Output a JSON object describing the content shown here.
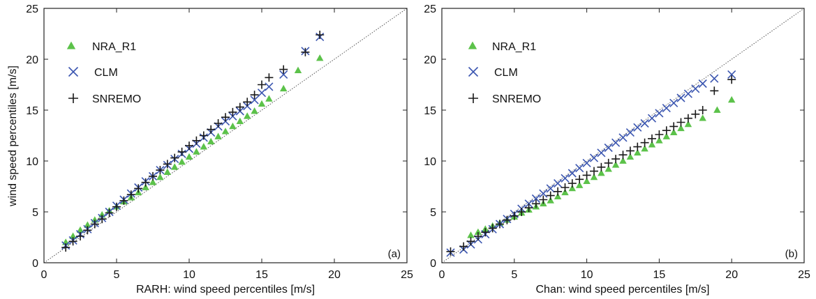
{
  "colors": {
    "NRA_R1": "#5cc24a",
    "CLM": "#3b56b0",
    "SNREMO": "#1a1a1a",
    "reference_line": "#555555"
  },
  "chart_data": [
    {
      "type": "scatter",
      "panel_label": "(a)",
      "xlabel": "RARH: wind speed percentiles [m/s]",
      "ylabel": "wind speed percentiles [m/s]",
      "xlim": [
        0,
        25
      ],
      "ylim": [
        0,
        25
      ],
      "ticks": [
        0,
        5,
        10,
        15,
        20,
        25
      ],
      "grid": false,
      "reference_line": "dotted 1:1 line",
      "legend_position": "upper-left",
      "series": [
        {
          "name": "NRA_R1",
          "marker": "triangle",
          "x": [
            1.5,
            2.0,
            2.5,
            3.0,
            3.5,
            4.0,
            4.5,
            5.0,
            5.5,
            6.0,
            6.5,
            7.0,
            7.5,
            8.0,
            8.5,
            9.0,
            9.5,
            10.0,
            10.5,
            11.0,
            11.5,
            12.0,
            12.5,
            13.0,
            13.5,
            14.0,
            14.5,
            15.0,
            15.5,
            16.5,
            17.5,
            19.0
          ],
          "y": [
            2.0,
            2.6,
            3.2,
            3.7,
            4.2,
            4.7,
            5.1,
            5.5,
            6.0,
            6.4,
            6.9,
            7.4,
            7.9,
            8.4,
            8.9,
            9.4,
            9.9,
            10.4,
            10.9,
            11.4,
            11.9,
            12.4,
            12.9,
            13.4,
            13.9,
            14.4,
            14.9,
            15.6,
            16.1,
            17.1,
            18.9,
            20.1
          ]
        },
        {
          "name": "CLM",
          "marker": "x",
          "x": [
            1.5,
            2.0,
            2.5,
            3.0,
            3.5,
            4.0,
            4.5,
            5.0,
            5.5,
            6.0,
            6.5,
            7.0,
            7.5,
            8.0,
            8.5,
            9.0,
            9.5,
            10.0,
            10.5,
            11.0,
            11.5,
            12.0,
            12.5,
            13.0,
            13.5,
            14.0,
            14.5,
            15.0,
            15.5,
            16.5,
            18.0,
            19.0
          ],
          "y": [
            1.7,
            2.2,
            2.8,
            3.3,
            3.9,
            4.4,
            5.0,
            5.6,
            6.2,
            6.8,
            7.4,
            8.0,
            8.5,
            9.1,
            9.6,
            10.2,
            10.7,
            11.2,
            11.7,
            12.3,
            12.8,
            13.4,
            13.9,
            14.4,
            14.9,
            15.4,
            16.0,
            16.7,
            17.3,
            18.5,
            20.8,
            22.2
          ]
        },
        {
          "name": "SNREMO",
          "marker": "plus",
          "x": [
            1.5,
            2.0,
            2.5,
            3.0,
            3.5,
            4.0,
            4.5,
            5.0,
            5.5,
            6.0,
            6.5,
            7.0,
            7.5,
            8.0,
            8.5,
            9.0,
            9.5,
            10.0,
            10.5,
            11.0,
            11.5,
            12.0,
            12.5,
            13.0,
            13.5,
            14.0,
            14.5,
            15.0,
            15.5,
            16.5,
            18.0,
            19.0
          ],
          "y": [
            1.5,
            2.1,
            2.6,
            3.2,
            3.8,
            4.3,
            4.9,
            5.5,
            6.1,
            6.7,
            7.3,
            7.9,
            8.5,
            9.1,
            9.7,
            10.3,
            10.9,
            11.5,
            12.0,
            12.5,
            13.1,
            13.7,
            14.3,
            14.8,
            15.3,
            15.8,
            16.5,
            17.5,
            18.2,
            19.0,
            20.7,
            22.4
          ]
        }
      ]
    },
    {
      "type": "scatter",
      "panel_label": "(b)",
      "xlabel": "Chan: wind speed percentiles [m/s]",
      "ylabel": "",
      "xlim": [
        0,
        25
      ],
      "ylim": [
        0,
        25
      ],
      "ticks": [
        0,
        5,
        10,
        15,
        20,
        25
      ],
      "grid": false,
      "reference_line": "dotted 1:1 line",
      "legend_position": "upper-left",
      "series": [
        {
          "name": "NRA_R1",
          "marker": "triangle",
          "x": [
            2.0,
            2.5,
            3.0,
            3.5,
            4.0,
            4.5,
            5.0,
            5.5,
            6.0,
            6.5,
            7.0,
            7.5,
            8.0,
            8.5,
            9.0,
            9.5,
            10.0,
            10.5,
            11.0,
            11.5,
            12.0,
            12.5,
            13.0,
            13.5,
            14.0,
            14.5,
            15.0,
            15.5,
            16.0,
            16.5,
            17.0,
            18.0,
            19.0,
            20.0
          ],
          "y": [
            2.7,
            3.0,
            3.3,
            3.6,
            3.9,
            4.2,
            4.5,
            4.9,
            5.2,
            5.5,
            5.8,
            6.1,
            6.5,
            6.9,
            7.3,
            7.6,
            8.0,
            8.4,
            8.8,
            9.2,
            9.6,
            10.0,
            10.4,
            10.8,
            11.2,
            11.6,
            12.0,
            12.4,
            12.8,
            13.2,
            13.6,
            14.2,
            15.0,
            16.0
          ]
        },
        {
          "name": "CLM",
          "marker": "x",
          "x": [
            0.6,
            1.5,
            2.0,
            2.5,
            3.0,
            3.5,
            4.0,
            4.5,
            5.0,
            5.5,
            6.0,
            6.5,
            7.0,
            7.5,
            8.0,
            8.5,
            9.0,
            9.5,
            10.0,
            10.5,
            11.0,
            11.5,
            12.0,
            12.5,
            13.0,
            13.5,
            14.0,
            14.5,
            15.0,
            15.5,
            16.0,
            16.5,
            17.0,
            17.5,
            18.0,
            18.8,
            20.0
          ],
          "y": [
            1.0,
            1.3,
            1.8,
            2.3,
            2.8,
            3.3,
            3.8,
            4.3,
            4.8,
            5.3,
            5.8,
            6.3,
            6.8,
            7.3,
            7.8,
            8.3,
            8.8,
            9.3,
            9.8,
            10.3,
            10.8,
            11.3,
            11.8,
            12.3,
            12.8,
            13.3,
            13.7,
            14.2,
            14.7,
            15.2,
            15.7,
            16.2,
            16.6,
            17.1,
            17.6,
            18.1,
            18.5
          ]
        },
        {
          "name": "SNREMO",
          "marker": "plus",
          "x": [
            0.6,
            1.5,
            2.0,
            2.5,
            3.0,
            3.5,
            4.0,
            4.5,
            5.0,
            5.5,
            6.0,
            6.5,
            7.0,
            7.5,
            8.0,
            8.5,
            9.0,
            9.5,
            10.0,
            10.5,
            11.0,
            11.5,
            12.0,
            12.5,
            13.0,
            13.5,
            14.0,
            14.5,
            15.0,
            15.5,
            16.0,
            16.5,
            17.0,
            17.5,
            18.0,
            18.8,
            20.0
          ],
          "y": [
            1.1,
            1.6,
            2.1,
            2.6,
            3.0,
            3.4,
            3.8,
            4.2,
            4.6,
            5.0,
            5.4,
            5.8,
            6.2,
            6.6,
            7.0,
            7.4,
            7.8,
            8.2,
            8.6,
            9.0,
            9.4,
            9.8,
            10.2,
            10.6,
            11.0,
            11.4,
            11.8,
            12.2,
            12.6,
            13.0,
            13.4,
            13.8,
            14.2,
            14.6,
            15.0,
            16.9,
            18.0
          ]
        }
      ]
    }
  ]
}
